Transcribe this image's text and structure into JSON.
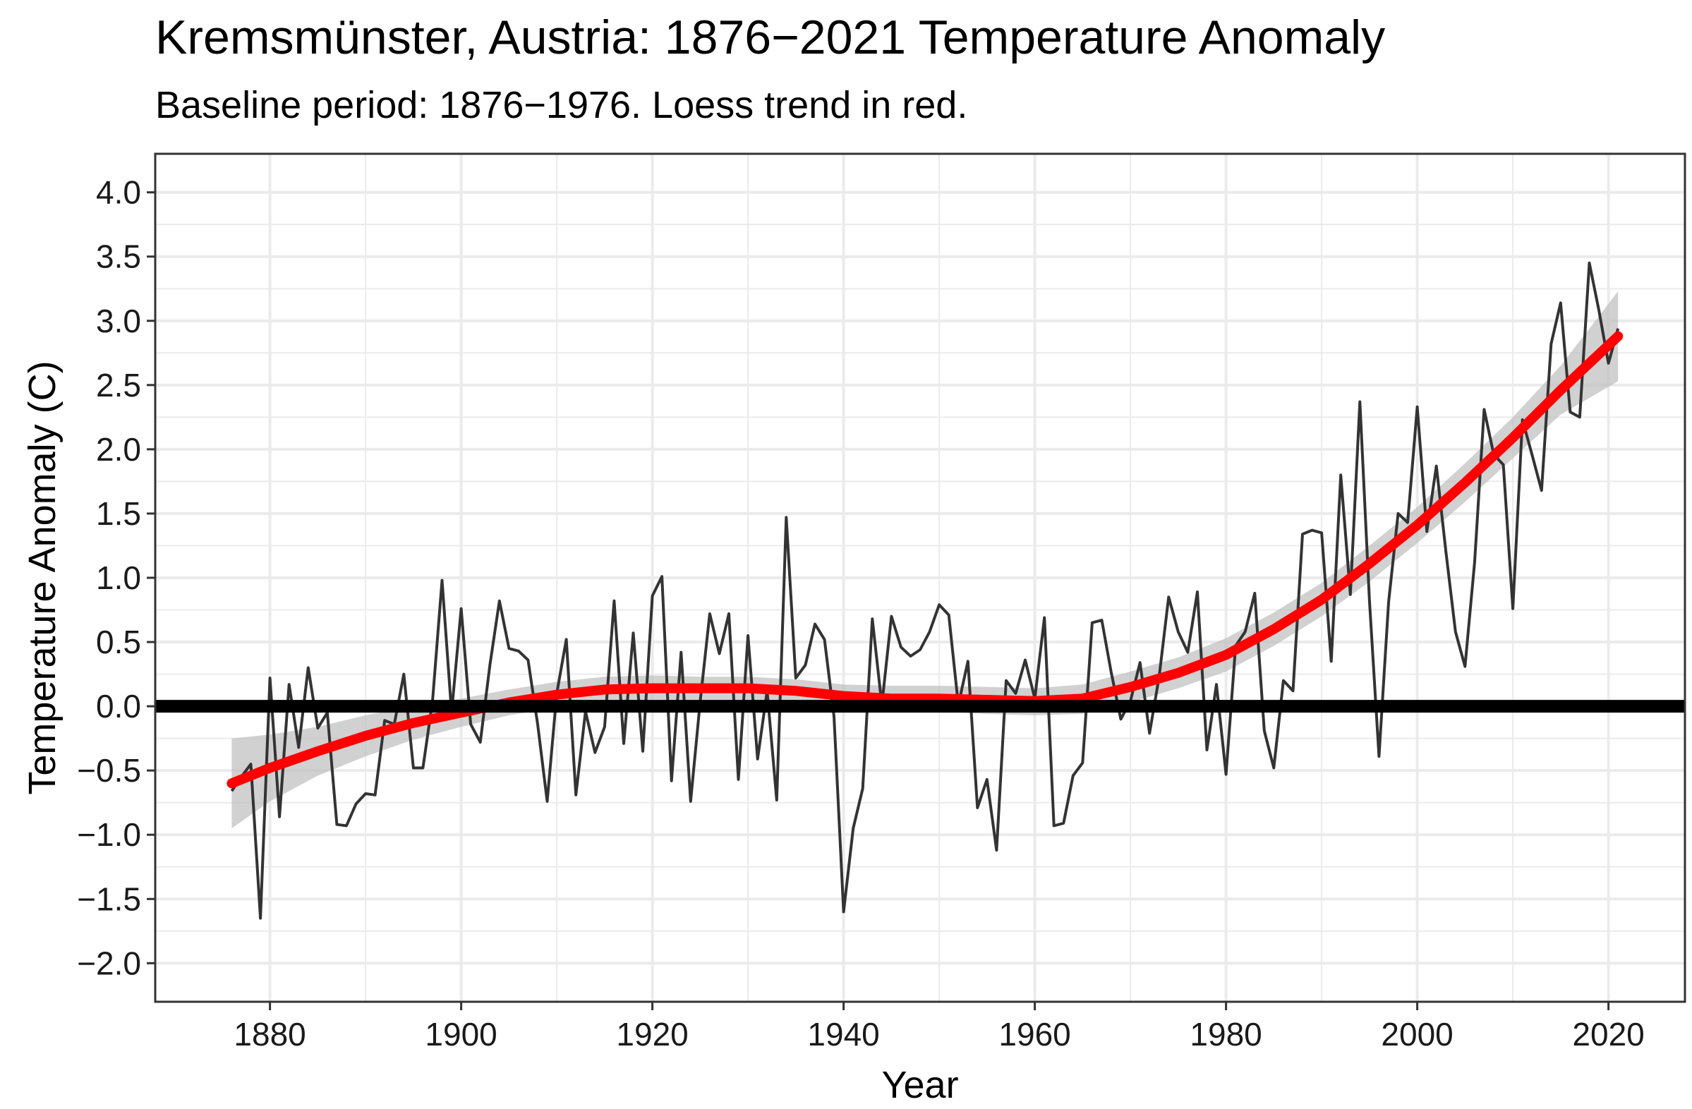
{
  "chart_data": {
    "type": "line",
    "title": "Kremsmünster, Austria: 1876−2021 Temperature Anomaly",
    "subtitle": "Baseline period: 1876−1976. Loess trend in red.",
    "xlabel": "Year",
    "ylabel": "Temperature Anomaly (C)",
    "xlim": [
      1868,
      2028
    ],
    "ylim": [
      -2.3,
      4.3
    ],
    "x_ticks": [
      1880,
      1900,
      1920,
      1940,
      1960,
      1980,
      2000,
      2020
    ],
    "x_tick_labels": [
      "1880",
      "1900",
      "1920",
      "1940",
      "1960",
      "1980",
      "2000",
      "2020"
    ],
    "y_ticks": [
      -2.0,
      -1.5,
      -1.0,
      -0.5,
      0.0,
      0.5,
      1.0,
      1.5,
      2.0,
      2.5,
      3.0,
      3.5,
      4.0
    ],
    "y_tick_labels": [
      "−2.0",
      "−1.5",
      "−1.0",
      "−0.5",
      "0.0",
      "0.5",
      "1.0",
      "1.5",
      "2.0",
      "2.5",
      "3.0",
      "3.5",
      "4.0"
    ],
    "grid": true,
    "baseline": 0.0,
    "colors": {
      "series": "#333333",
      "trend": "#ff0000",
      "band": "#bebebe",
      "baseline": "#000000",
      "grid": "#ebebeb"
    },
    "series": [
      {
        "x": [
          1876,
          1877,
          1878,
          1879,
          1880,
          1881,
          1882,
          1883,
          1884,
          1885,
          1886,
          1887,
          1888,
          1889,
          1890,
          1891,
          1892,
          1893,
          1894,
          1895,
          1896,
          1897,
          1898,
          1899,
          1900,
          1901,
          1902,
          1903,
          1904,
          1905,
          1906,
          1907,
          1908,
          1909,
          1910,
          1911,
          1912,
          1913,
          1914,
          1915,
          1916,
          1917,
          1918,
          1919,
          1920,
          1921,
          1922,
          1923,
          1924,
          1925,
          1926,
          1927,
          1928,
          1929,
          1930,
          1931,
          1932,
          1933,
          1934,
          1935,
          1936,
          1937,
          1938,
          1939,
          1940,
          1941,
          1942,
          1943,
          1944,
          1945,
          1946,
          1947,
          1948,
          1949,
          1950,
          1951,
          1952,
          1953,
          1954,
          1955,
          1956,
          1957,
          1958,
          1959,
          1960,
          1961,
          1962,
          1963,
          1964,
          1965,
          1966,
          1967,
          1968,
          1969,
          1970,
          1971,
          1972,
          1973,
          1974,
          1975,
          1976,
          1977,
          1978,
          1979,
          1980,
          1981,
          1982,
          1983,
          1984,
          1985,
          1986,
          1987,
          1988,
          1989,
          1990,
          1991,
          1992,
          1993,
          1994,
          1995,
          1996,
          1997,
          1998,
          1999,
          2000,
          2001,
          2002,
          2003,
          2004,
          2005,
          2006,
          2007,
          2008,
          2009,
          2010,
          2011,
          2012,
          2013,
          2014,
          2015,
          2016,
          2017,
          2018,
          2019,
          2020,
          2021
        ],
        "values": [
          -0.66,
          -0.55,
          -0.45,
          -1.65,
          0.22,
          -0.86,
          0.17,
          -0.32,
          0.3,
          -0.17,
          -0.05,
          -0.92,
          -0.93,
          -0.76,
          -0.68,
          -0.69,
          -0.11,
          -0.14,
          0.25,
          -0.48,
          -0.48,
          0.04,
          0.98,
          -0.05,
          0.76,
          -0.14,
          -0.28,
          0.32,
          0.82,
          0.45,
          0.43,
          0.36,
          -0.14,
          -0.74,
          0.1,
          0.52,
          -0.69,
          -0.04,
          -0.36,
          -0.16,
          0.82,
          -0.29,
          0.57,
          -0.35,
          0.86,
          1.01,
          -0.58,
          0.42,
          -0.74,
          0.04,
          0.72,
          0.41,
          0.72,
          -0.57,
          0.55,
          -0.41,
          0.12,
          -0.73,
          1.47,
          0.22,
          0.32,
          0.64,
          0.52,
          -0.08,
          -1.6,
          -0.95,
          -0.64,
          0.68,
          0.01,
          0.7,
          0.46,
          0.39,
          0.44,
          0.58,
          0.79,
          0.71,
          0.01,
          0.35,
          -0.79,
          -0.57,
          -1.12,
          0.2,
          0.1,
          0.36,
          0.06,
          0.69,
          -0.93,
          -0.91,
          -0.54,
          -0.44,
          0.65,
          0.67,
          0.26,
          -0.1,
          0.04,
          0.34,
          -0.21,
          0.23,
          0.85,
          0.58,
          0.42,
          0.89,
          -0.34,
          0.17,
          -0.53,
          0.47,
          0.58,
          0.88,
          -0.19,
          -0.48,
          0.2,
          0.12,
          1.34,
          1.37,
          1.35,
          0.35,
          1.8,
          0.87,
          2.37,
          0.83,
          -0.39,
          0.81,
          1.5,
          1.43,
          2.33,
          1.36,
          1.87,
          1.2,
          0.58,
          0.31,
          1.12,
          2.31,
          1.96,
          1.88,
          0.76,
          2.23,
          1.96,
          1.68,
          2.82,
          3.14,
          2.29,
          2.25,
          3.45,
          3.08,
          2.67,
          2.94
        ]
      }
    ],
    "trend": {
      "x": [
        1876,
        1880,
        1885,
        1890,
        1895,
        1900,
        1905,
        1910,
        1915,
        1920,
        1925,
        1930,
        1935,
        1940,
        1945,
        1950,
        1955,
        1960,
        1965,
        1970,
        1975,
        1980,
        1985,
        1990,
        1995,
        2000,
        2005,
        2010,
        2015,
        2021
      ],
      "values": [
        -0.6,
        -0.48,
        -0.35,
        -0.23,
        -0.13,
        -0.05,
        0.03,
        0.09,
        0.13,
        0.14,
        0.14,
        0.14,
        0.12,
        0.08,
        0.06,
        0.06,
        0.05,
        0.04,
        0.06,
        0.15,
        0.26,
        0.4,
        0.6,
        0.83,
        1.11,
        1.41,
        1.74,
        2.09,
        2.46,
        2.88
      ],
      "lower": [
        -0.95,
        -0.74,
        -0.54,
        -0.39,
        -0.26,
        -0.16,
        -0.07,
        -0.01,
        0.03,
        0.05,
        0.05,
        0.05,
        0.03,
        -0.01,
        -0.04,
        -0.04,
        -0.06,
        -0.07,
        -0.06,
        0.03,
        0.14,
        0.27,
        0.47,
        0.7,
        0.97,
        1.27,
        1.59,
        1.93,
        2.27,
        2.53
      ],
      "upper": [
        -0.25,
        -0.22,
        -0.16,
        -0.07,
        0.0,
        0.06,
        0.13,
        0.19,
        0.23,
        0.24,
        0.23,
        0.23,
        0.21,
        0.17,
        0.16,
        0.16,
        0.15,
        0.14,
        0.17,
        0.27,
        0.38,
        0.53,
        0.73,
        0.96,
        1.25,
        1.55,
        1.89,
        2.25,
        2.65,
        3.23
      ]
    }
  }
}
